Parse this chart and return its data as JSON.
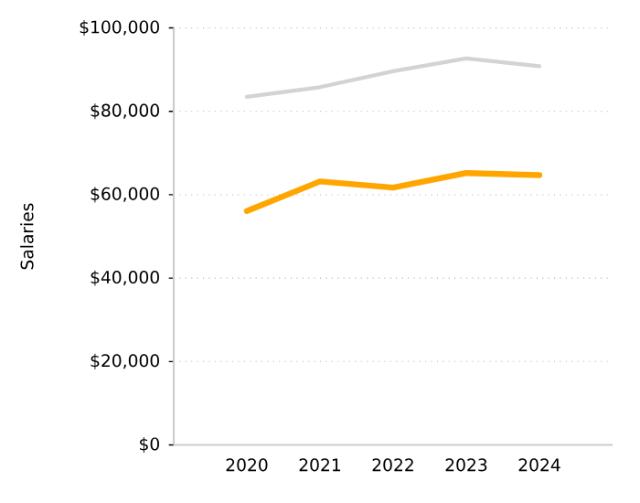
{
  "chart_data": {
    "type": "line",
    "ylabel": "Salaries",
    "x": [
      2020,
      2021,
      2022,
      2023,
      2024
    ],
    "series": [
      {
        "color": "#d3d3d3",
        "values": [
          83500,
          85800,
          89600,
          92700,
          90800
        ]
      },
      {
        "color": "#ffa500",
        "values": [
          56100,
          63200,
          61700,
          65200,
          64700
        ]
      }
    ],
    "xlim": [
      2019,
      2025
    ],
    "xticks": [
      2020,
      2021,
      2022,
      2023,
      2024
    ],
    "ylim": [
      0,
      100000
    ],
    "yticks": [
      {
        "value": 0,
        "label": "$0"
      },
      {
        "value": 20000,
        "label": "$20,000"
      },
      {
        "value": 40000,
        "label": "$40,000"
      },
      {
        "value": 60000,
        "label": "$60,000"
      },
      {
        "value": 80000,
        "label": "$80,000"
      },
      {
        "value": 100000,
        "label": "$100,000"
      }
    ],
    "grid": "y",
    "marker": "none",
    "line_style": "solid"
  }
}
